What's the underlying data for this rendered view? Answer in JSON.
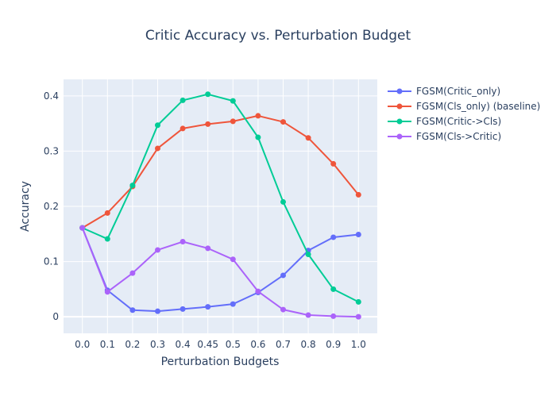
{
  "chart_data": {
    "type": "line",
    "title": "Critic Accuracy vs. Perturbation Budget",
    "xlabel": "Perturbation Budgets",
    "ylabel": "Accuracy",
    "categories": [
      "0.0",
      "0.1",
      "0.2",
      "0.3",
      "0.4",
      "0.45",
      "0.5",
      "0.6",
      "0.7",
      "0.8",
      "0.9",
      "1.0"
    ],
    "ylim": [
      -0.03,
      0.43
    ],
    "yticks": [
      0,
      0.1,
      0.2,
      0.3,
      0.4
    ],
    "ytick_labels": [
      "0",
      "0.1",
      "0.2",
      "0.3",
      "0.4"
    ],
    "grid": true,
    "legend_position": "top-right",
    "series": [
      {
        "name": "FGSM(Critic_only)",
        "color": "#636efa",
        "values": [
          0.161,
          0.048,
          0.012,
          0.01,
          0.014,
          0.018,
          0.023,
          0.044,
          0.075,
          0.12,
          0.144,
          0.149
        ]
      },
      {
        "name": "FGSM(Cls_only) (baseline)",
        "color": "#ef553b",
        "values": [
          0.161,
          0.188,
          0.236,
          0.305,
          0.341,
          0.349,
          0.354,
          0.364,
          0.353,
          0.324,
          0.277,
          0.221
        ]
      },
      {
        "name": "FGSM(Critic->Cls)",
        "color": "#00cc96",
        "values": [
          0.161,
          0.141,
          0.238,
          0.347,
          0.392,
          0.403,
          0.391,
          0.325,
          0.208,
          0.113,
          0.05,
          0.027
        ]
      },
      {
        "name": "FGSM(Cls->Critic)",
        "color": "#ab63fa",
        "values": [
          0.161,
          0.045,
          0.079,
          0.121,
          0.136,
          0.124,
          0.104,
          0.046,
          0.013,
          0.003,
          0.001,
          0.0
        ]
      }
    ]
  }
}
